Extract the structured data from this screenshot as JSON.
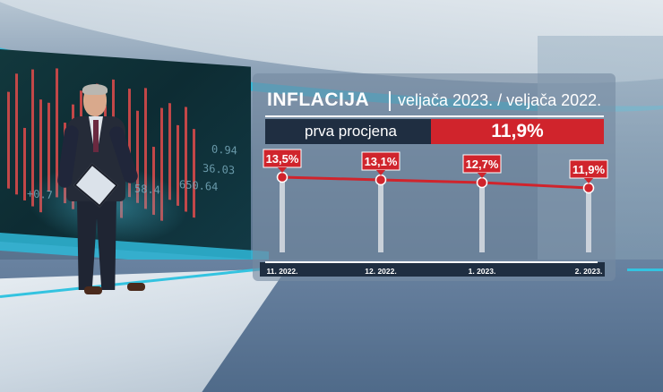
{
  "graphic": {
    "title": "INFLACIJA",
    "subtitle": "veljača 2023. / veljača 2022.",
    "estimate_label": "prva procjena",
    "estimate_value": "11,9%"
  },
  "chart_data": {
    "type": "line",
    "categories": [
      "11. 2022.",
      "12. 2022.",
      "1. 2023.",
      "2. 2023."
    ],
    "series": [
      {
        "values": [
          13.5,
          13.1,
          12.7,
          11.9
        ],
        "labels": [
          "13,5%",
          "13,1%",
          "12,7%",
          "11,9%"
        ]
      }
    ],
    "ylim": [
      0,
      14
    ],
    "grid": false
  },
  "videowall_numbers": [
    "0.94",
    "36.03",
    "650.64",
    "58.4",
    "+0.7"
  ],
  "colors": {
    "accent_red": "#d0242c",
    "navy": "#1f2e41",
    "studio_cyan": "#2fb9d8"
  }
}
